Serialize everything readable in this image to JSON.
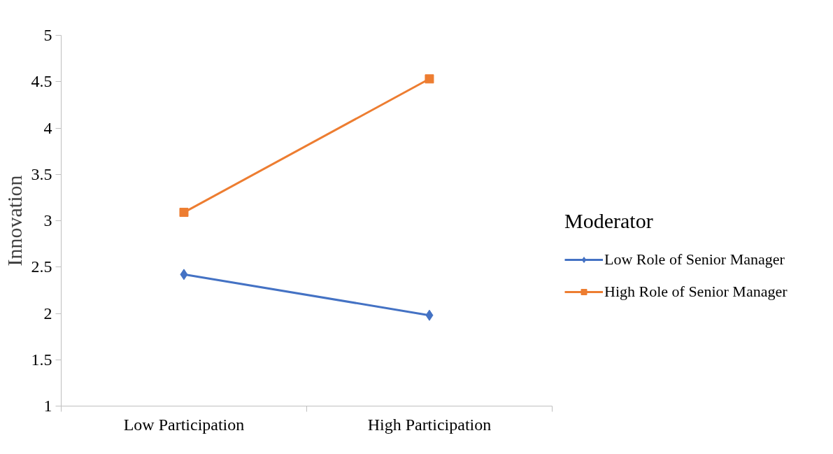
{
  "chart_data": {
    "type": "line",
    "ylabel": "Innovation",
    "legend_title": "Moderator",
    "categories": [
      "Low Participation",
      "High Participation"
    ],
    "series": [
      {
        "name": "Low Role of Senior Manager",
        "color": "#4472c4",
        "marker": "diamond",
        "values": [
          2.42,
          1.98
        ]
      },
      {
        "name": "High Role of Senior Manager",
        "color": "#ed7d31",
        "marker": "square",
        "values": [
          3.09,
          4.53
        ]
      }
    ],
    "ylim": [
      1,
      5
    ],
    "yticks": [
      1,
      1.5,
      2,
      2.5,
      3,
      3.5,
      4,
      4.5,
      5
    ],
    "grid": false,
    "legend": "right",
    "line_style": "solid"
  }
}
